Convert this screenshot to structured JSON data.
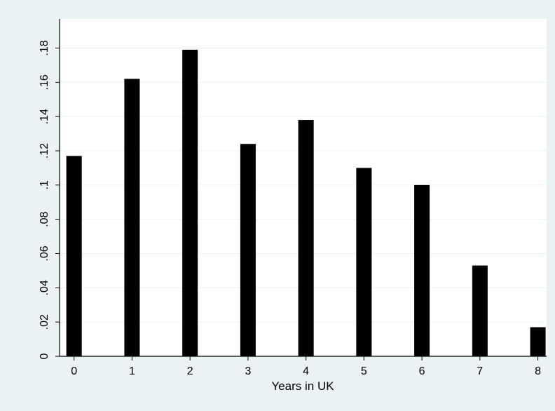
{
  "chart_data": {
    "type": "bar",
    "title": "",
    "xlabel": "Years in UK",
    "ylabel": "",
    "categories": [
      "0",
      "1",
      "2",
      "3",
      "4",
      "5",
      "6",
      "7",
      "8"
    ],
    "x": [
      0,
      1,
      2,
      3,
      4,
      5,
      6,
      7,
      8
    ],
    "values": [
      0.117,
      0.162,
      0.179,
      0.124,
      0.138,
      0.11,
      0.1,
      0.053,
      0.017
    ],
    "xlim": [
      -0.25,
      8.15
    ],
    "ylim": [
      0,
      0.197
    ],
    "x_ticks": [
      "0",
      "1",
      "2",
      "3",
      "4",
      "5",
      "6",
      "7",
      "8"
    ],
    "y_ticks": [
      "0",
      ".02",
      ".04",
      ".06",
      ".08",
      ".1",
      ".12",
      ".14",
      ".16",
      ".18"
    ],
    "y_tick_values": [
      0,
      0.02,
      0.04,
      0.06,
      0.08,
      0.1,
      0.12,
      0.14,
      0.16,
      0.18
    ],
    "grid": true,
    "legend": "none",
    "colors": {
      "background": "#eaf2f3",
      "plot_area": "#ffffff",
      "bars": "#000000",
      "grid": "#eaf2f3",
      "axis": "#000000"
    }
  }
}
